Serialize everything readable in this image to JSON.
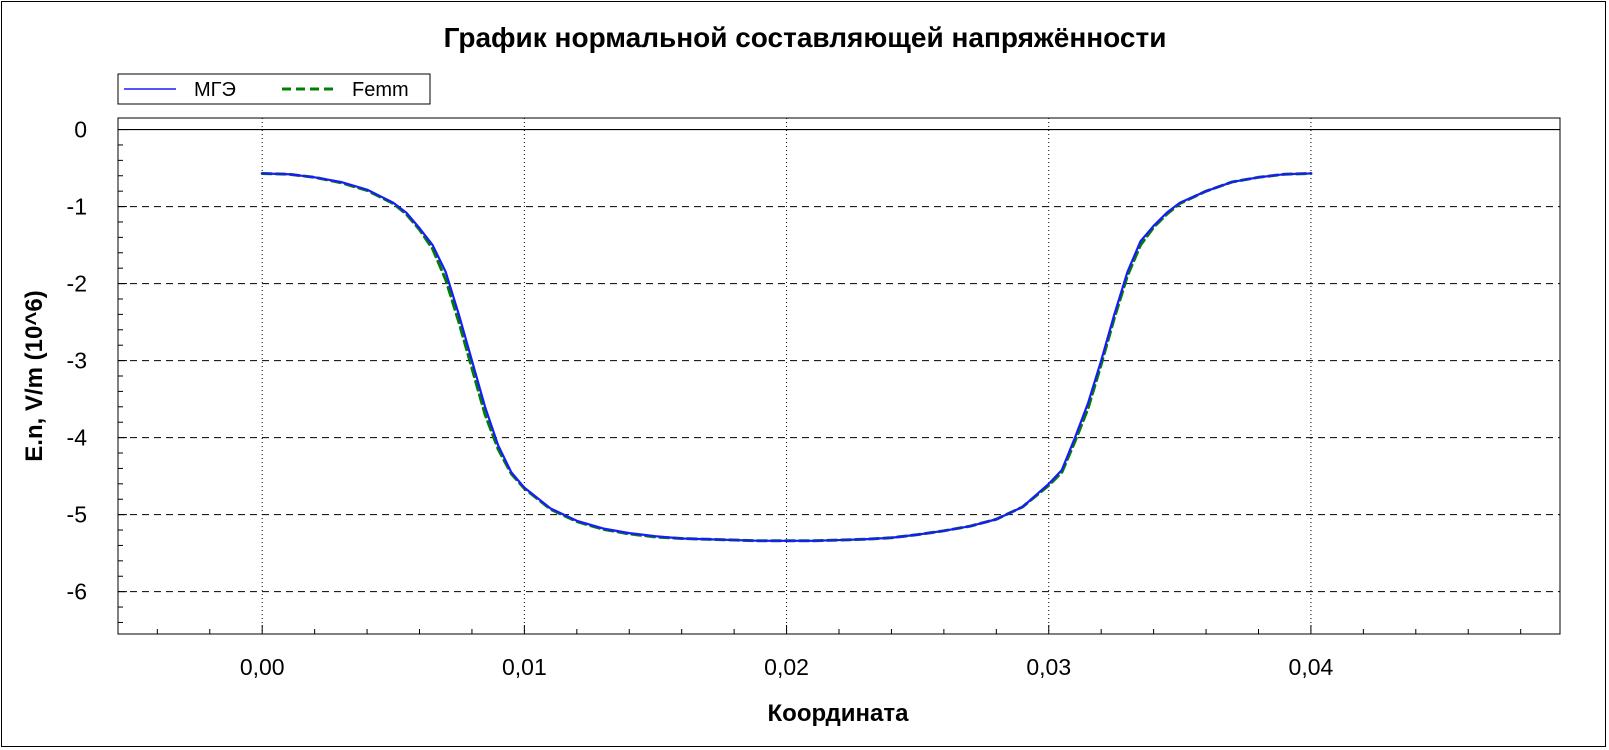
{
  "chart_data": {
    "type": "line",
    "title": "График нормальной составляющей напряжённости",
    "xlabel": "Координата",
    "ylabel": "E.n, V/m (10^6)",
    "xlim": [
      -0.0055,
      0.0495
    ],
    "ylim": [
      -6.55,
      0.15
    ],
    "x_ticks": [
      0.0,
      0.01,
      0.02,
      0.03,
      0.04
    ],
    "x_tick_labels": [
      "0,00",
      "0,01",
      "0,02",
      "0,03",
      "0,04"
    ],
    "y_ticks": [
      0,
      -1,
      -2,
      -3,
      -4,
      -5,
      -6
    ],
    "y_tick_labels": [
      "0",
      "-1",
      "-2",
      "-3",
      "-4",
      "-5",
      "-6"
    ],
    "grid": {
      "x": "dotted",
      "y": "dashed"
    },
    "legend_position": "top-left",
    "series": [
      {
        "name": "МГЭ",
        "color": "#1a1aff",
        "style": "solid",
        "x": [
          0.0,
          0.001,
          0.002,
          0.003,
          0.004,
          0.005,
          0.0055,
          0.006,
          0.0065,
          0.007,
          0.0075,
          0.008,
          0.0085,
          0.009,
          0.0095,
          0.01,
          0.011,
          0.012,
          0.013,
          0.014,
          0.015,
          0.016,
          0.017,
          0.018,
          0.019,
          0.02,
          0.021,
          0.022,
          0.023,
          0.024,
          0.025,
          0.026,
          0.027,
          0.028,
          0.029,
          0.03,
          0.0305,
          0.031,
          0.0315,
          0.032,
          0.0325,
          0.033,
          0.0335,
          0.034,
          0.0345,
          0.035,
          0.036,
          0.037,
          0.038,
          0.039,
          0.04
        ],
        "y": [
          -0.57,
          -0.58,
          -0.62,
          -0.68,
          -0.78,
          -0.95,
          -1.08,
          -1.28,
          -1.5,
          -1.85,
          -2.4,
          -3.0,
          -3.6,
          -4.1,
          -4.45,
          -4.65,
          -4.92,
          -5.08,
          -5.18,
          -5.24,
          -5.28,
          -5.31,
          -5.32,
          -5.33,
          -5.34,
          -5.34,
          -5.34,
          -5.33,
          -5.32,
          -5.3,
          -5.26,
          -5.21,
          -5.15,
          -5.06,
          -4.9,
          -4.6,
          -4.42,
          -4.0,
          -3.55,
          -3.0,
          -2.4,
          -1.85,
          -1.45,
          -1.25,
          -1.08,
          -0.95,
          -0.8,
          -0.68,
          -0.62,
          -0.58,
          -0.57
        ]
      },
      {
        "name": "Femm",
        "color": "#008000",
        "style": "dashed",
        "x": [
          0.0,
          0.001,
          0.002,
          0.003,
          0.004,
          0.005,
          0.0055,
          0.006,
          0.0065,
          0.007,
          0.0075,
          0.008,
          0.0085,
          0.009,
          0.0095,
          0.01,
          0.011,
          0.012,
          0.013,
          0.014,
          0.015,
          0.016,
          0.017,
          0.018,
          0.019,
          0.02,
          0.021,
          0.022,
          0.023,
          0.024,
          0.025,
          0.026,
          0.027,
          0.028,
          0.029,
          0.03,
          0.0305,
          0.031,
          0.0315,
          0.032,
          0.0325,
          0.033,
          0.0335,
          0.034,
          0.0345,
          0.035,
          0.036,
          0.037,
          0.038,
          0.039,
          0.04
        ],
        "y": [
          -0.57,
          -0.58,
          -0.62,
          -0.69,
          -0.79,
          -0.96,
          -1.1,
          -1.3,
          -1.55,
          -1.95,
          -2.5,
          -3.1,
          -3.7,
          -4.15,
          -4.47,
          -4.66,
          -4.93,
          -5.09,
          -5.19,
          -5.25,
          -5.29,
          -5.31,
          -5.32,
          -5.33,
          -5.34,
          -5.34,
          -5.34,
          -5.33,
          -5.32,
          -5.3,
          -5.26,
          -5.21,
          -5.15,
          -5.06,
          -4.9,
          -4.62,
          -4.45,
          -4.05,
          -3.62,
          -3.05,
          -2.45,
          -1.9,
          -1.5,
          -1.27,
          -1.1,
          -0.96,
          -0.8,
          -0.68,
          -0.62,
          -0.58,
          -0.57
        ]
      }
    ]
  }
}
